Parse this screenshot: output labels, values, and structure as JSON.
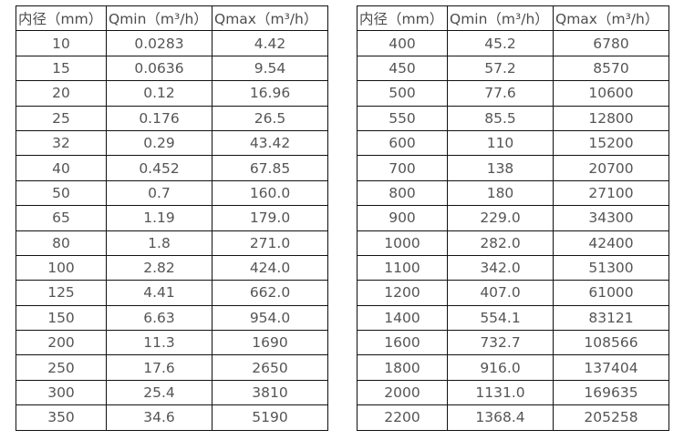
{
  "colors": {
    "border": "#111111",
    "text": "#555555",
    "background": "#ffffff"
  },
  "left_table": {
    "headers": [
      "内径（mm）",
      "Qmin（m³/h）",
      "Qmax（m³/h）"
    ],
    "rows": [
      [
        "10",
        "0.0283",
        "4.42"
      ],
      [
        "15",
        "0.0636",
        "9.54"
      ],
      [
        "20",
        "0.12",
        "16.96"
      ],
      [
        "25",
        "0.176",
        "26.5"
      ],
      [
        "32",
        "0.29",
        "43.42"
      ],
      [
        "40",
        "0.452",
        "67.85"
      ],
      [
        "50",
        "0.7",
        "160.0"
      ],
      [
        "65",
        "1.19",
        "179.0"
      ],
      [
        "80",
        "1.8",
        "271.0"
      ],
      [
        "100",
        "2.82",
        "424.0"
      ],
      [
        "125",
        "4.41",
        "662.0"
      ],
      [
        "150",
        "6.63",
        "954.0"
      ],
      [
        "200",
        "11.3",
        "1690"
      ],
      [
        "250",
        "17.6",
        "2650"
      ],
      [
        "300",
        "25.4",
        "3810"
      ],
      [
        "350",
        "34.6",
        "5190"
      ]
    ]
  },
  "right_table": {
    "headers": [
      "内径（mm）",
      "Qmin（m³/h）",
      "Qmax（m³/h）"
    ],
    "rows": [
      [
        "400",
        "45.2",
        "6780"
      ],
      [
        "450",
        "57.2",
        "8570"
      ],
      [
        "500",
        "77.6",
        "10600"
      ],
      [
        "550",
        "85.5",
        "12800"
      ],
      [
        "600",
        "110",
        "15200"
      ],
      [
        "700",
        "138",
        "20700"
      ],
      [
        "800",
        "180",
        "27100"
      ],
      [
        "900",
        "229.0",
        "34300"
      ],
      [
        "1000",
        "282.0",
        "42400"
      ],
      [
        "1100",
        "342.0",
        "51300"
      ],
      [
        "1200",
        "407.0",
        "61000"
      ],
      [
        "1400",
        "554.1",
        "83121"
      ],
      [
        "1600",
        "732.7",
        "108566"
      ],
      [
        "1800",
        "916.0",
        "137404"
      ],
      [
        "2000",
        "1131.0",
        "169635"
      ],
      [
        "2200",
        "1368.4",
        "205258"
      ]
    ]
  }
}
